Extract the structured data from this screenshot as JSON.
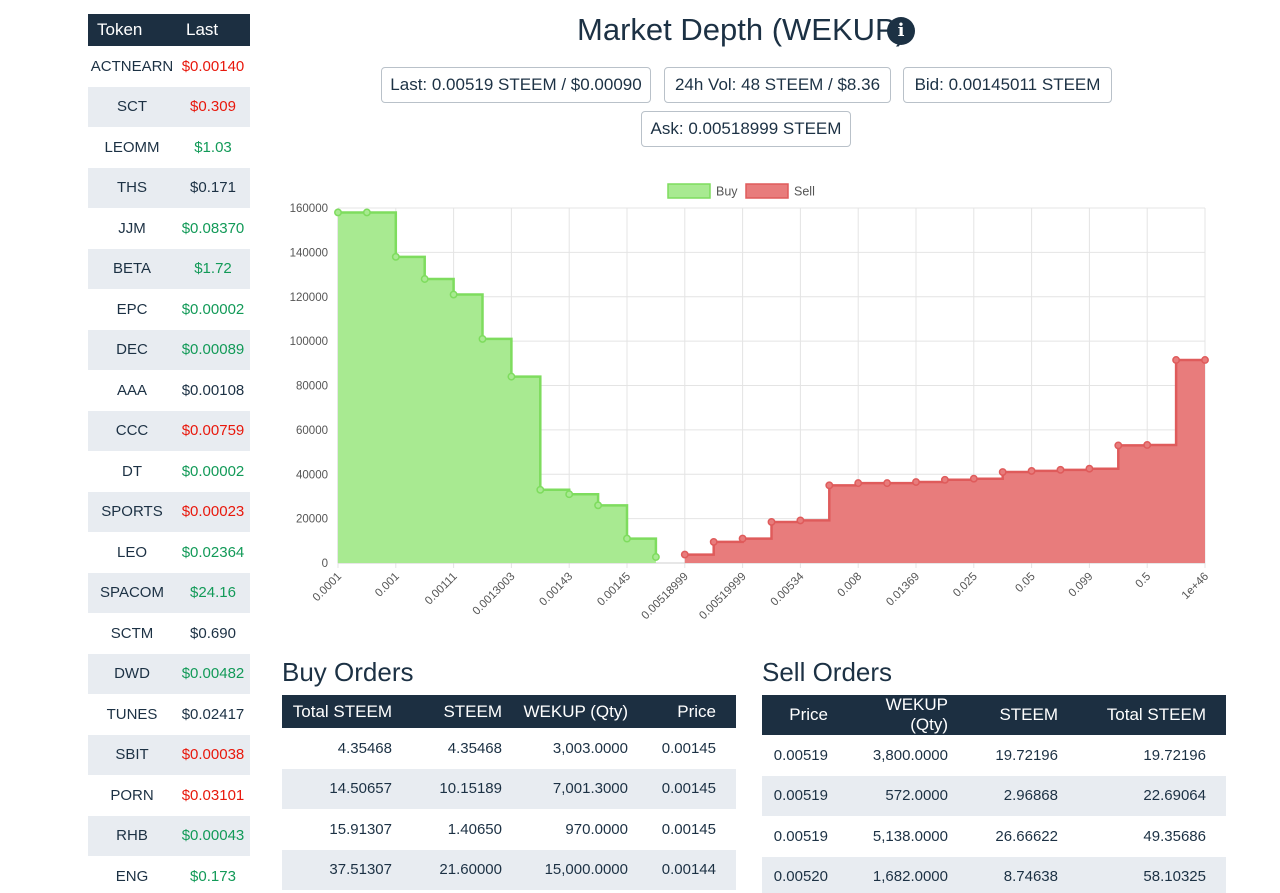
{
  "sidebar": {
    "headers": {
      "token": "Token",
      "last": "Last"
    },
    "rows": [
      {
        "token": "ACTNEARN",
        "last": "$0.00140",
        "trend": "down"
      },
      {
        "token": "SCT",
        "last": "$0.309",
        "trend": "down"
      },
      {
        "token": "LEOMM",
        "last": "$1.03",
        "trend": "up"
      },
      {
        "token": "THS",
        "last": "$0.171",
        "trend": "flat"
      },
      {
        "token": "JJM",
        "last": "$0.08370",
        "trend": "up"
      },
      {
        "token": "BETA",
        "last": "$1.72",
        "trend": "up"
      },
      {
        "token": "EPC",
        "last": "$0.00002",
        "trend": "up"
      },
      {
        "token": "DEC",
        "last": "$0.00089",
        "trend": "up"
      },
      {
        "token": "AAA",
        "last": "$0.00108",
        "trend": "flat"
      },
      {
        "token": "CCC",
        "last": "$0.00759",
        "trend": "down"
      },
      {
        "token": "DT",
        "last": "$0.00002",
        "trend": "up"
      },
      {
        "token": "SPORTS",
        "last": "$0.00023",
        "trend": "down"
      },
      {
        "token": "LEO",
        "last": "$0.02364",
        "trend": "up"
      },
      {
        "token": "SPACOM",
        "last": "$24.16",
        "trend": "up"
      },
      {
        "token": "SCTM",
        "last": "$0.690",
        "trend": "flat"
      },
      {
        "token": "DWD",
        "last": "$0.00482",
        "trend": "up"
      },
      {
        "token": "TUNES",
        "last": "$0.02417",
        "trend": "flat"
      },
      {
        "token": "SBIT",
        "last": "$0.00038",
        "trend": "down"
      },
      {
        "token": "PORN",
        "last": "$0.03101",
        "trend": "down"
      },
      {
        "token": "RHB",
        "last": "$0.00043",
        "trend": "up"
      },
      {
        "token": "ENG",
        "last": "$0.173",
        "trend": "up"
      }
    ]
  },
  "header": {
    "title": "Market Depth (WEKUP)",
    "info_icon": "info-circle-icon",
    "stats": {
      "last": "Last: 0.00519 STEEM / $0.00090",
      "volume": "24h Vol: 48 STEEM / $8.36",
      "bid": "Bid: 0.00145011 STEEM",
      "ask": "Ask: 0.00518999 STEEM"
    }
  },
  "colors": {
    "buy_fill": "#a8ea91",
    "buy_line": "#7edc5e",
    "sell_fill": "#e87c7c",
    "sell_line": "#df5b5b",
    "dark": "#1c2f41"
  },
  "chart_data": {
    "type": "area",
    "title": "",
    "xlabel": "",
    "ylabel": "",
    "legend_position": "top-center",
    "grid": true,
    "ylim": [
      0,
      160000
    ],
    "y_ticks": [
      "0",
      "20000",
      "40000",
      "60000",
      "80000",
      "100000",
      "120000",
      "140000",
      "160000"
    ],
    "x_tick_labels": [
      "0.0001",
      "0.001",
      "0.00111",
      "0.0013003",
      "0.00143",
      "0.00145",
      "0.00518999",
      "0.00519999",
      "0.00534",
      "0.008",
      "0.01369",
      "0.025",
      "0.05",
      "0.099",
      "0.5",
      "1e+46"
    ],
    "series": [
      {
        "name": "Buy",
        "values": [
          158000,
          158000,
          138000,
          128000,
          121000,
          101000,
          84000,
          33000,
          31000,
          26000,
          11000,
          2700
        ]
      },
      {
        "name": "Sell",
        "values": [
          3800,
          9500,
          11000,
          18500,
          19200,
          35000,
          36000,
          36000,
          36500,
          37500,
          38000,
          41000,
          41500,
          42000,
          42500,
          53000,
          53200,
          91500,
          91500
        ]
      }
    ]
  },
  "buy_orders": {
    "title": "Buy Orders",
    "headers": [
      "Total STEEM",
      "STEEM",
      "WEKUP (Qty)",
      "Price"
    ],
    "rows": [
      [
        "4.35468",
        "4.35468",
        "3,003.0000",
        "0.00145"
      ],
      [
        "14.50657",
        "10.15189",
        "7,001.3000",
        "0.00145"
      ],
      [
        "15.91307",
        "1.40650",
        "970.0000",
        "0.00145"
      ],
      [
        "37.51307",
        "21.60000",
        "15,000.0000",
        "0.00144"
      ]
    ]
  },
  "sell_orders": {
    "title": "Sell Orders",
    "headers": [
      "Price",
      "WEKUP (Qty)",
      "STEEM",
      "Total STEEM"
    ],
    "rows": [
      [
        "0.00519",
        "3,800.0000",
        "19.72196",
        "19.72196"
      ],
      [
        "0.00519",
        "572.0000",
        "2.96868",
        "22.69064"
      ],
      [
        "0.00519",
        "5,138.0000",
        "26.66622",
        "49.35686"
      ],
      [
        "0.00520",
        "1,682.0000",
        "8.74638",
        "58.10325"
      ]
    ]
  }
}
